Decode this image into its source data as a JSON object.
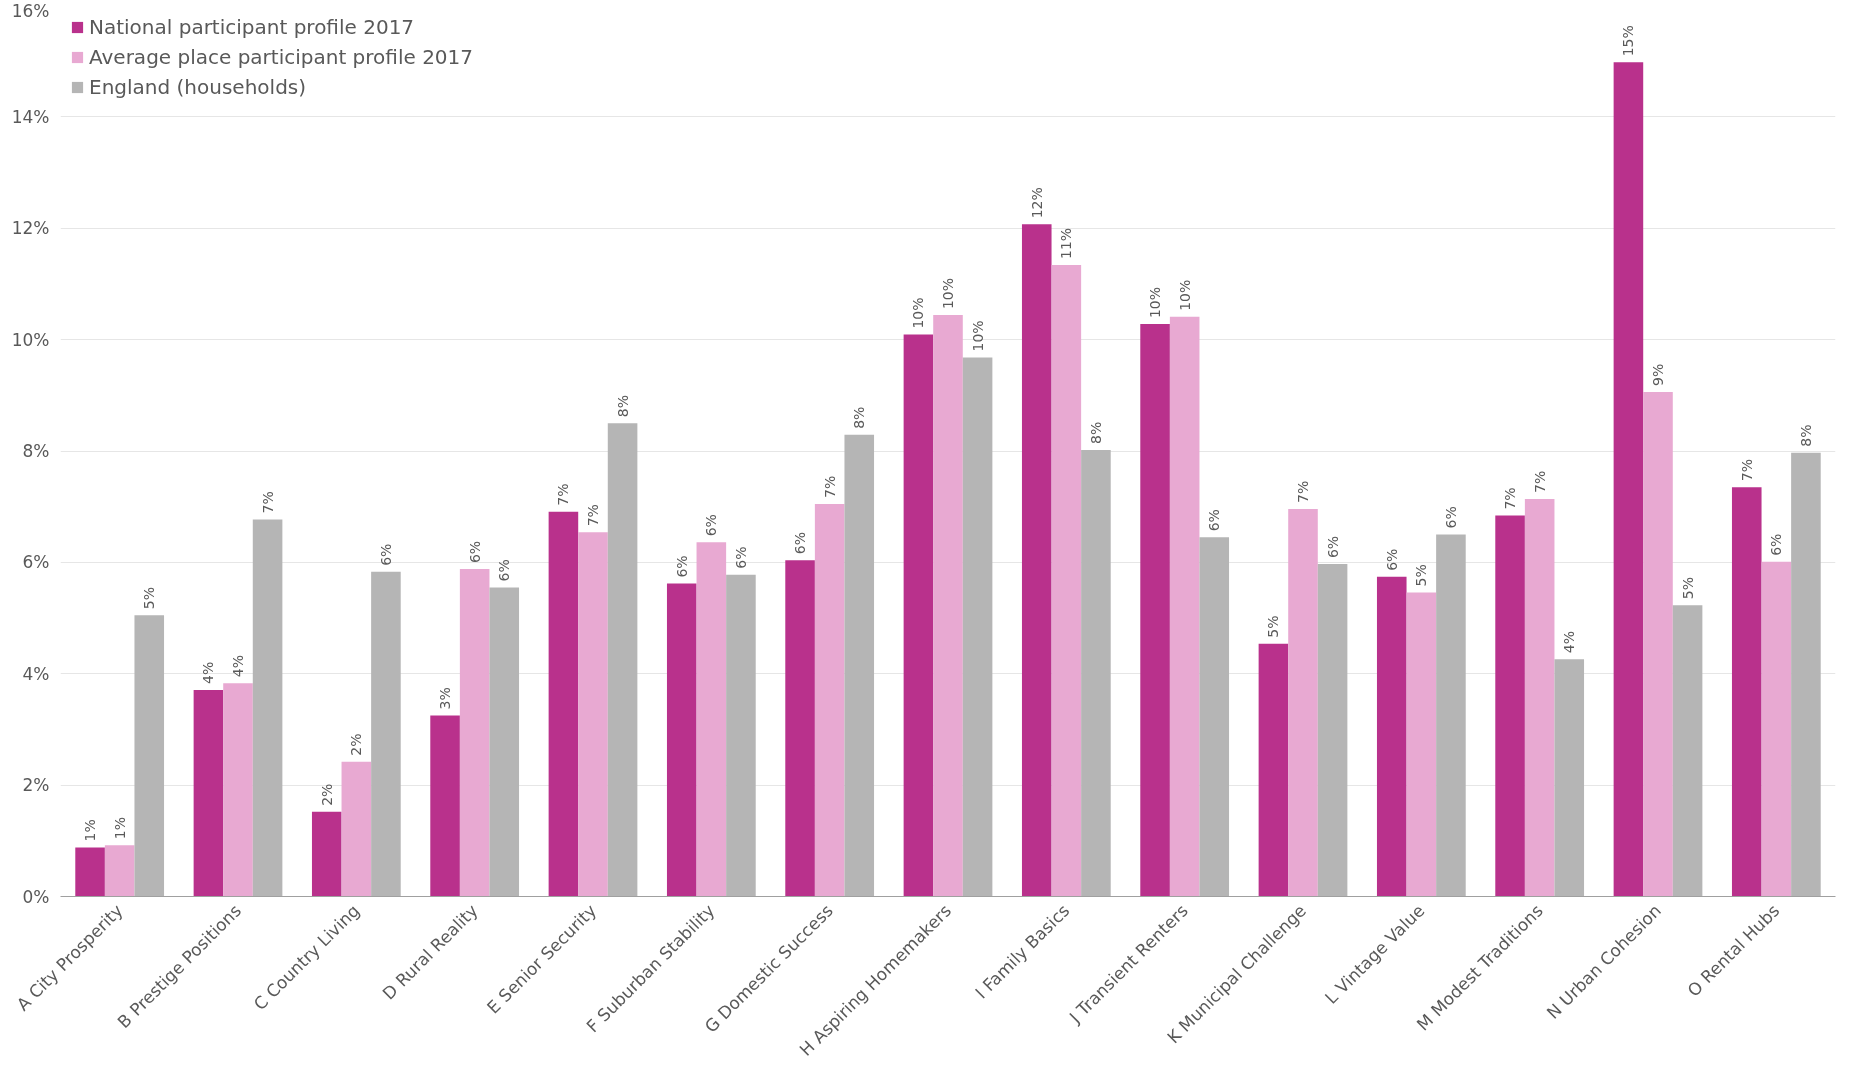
{
  "chart_data": {
    "type": "bar",
    "categories": [
      "A City Prosperity",
      "B Prestige Positions",
      "C Country Living",
      "D Rural Reality",
      "E Senior Security",
      "F Suburban Stability",
      "G Domestic Success",
      "H Aspiring Homemakers",
      "I Family Basics",
      "J Transient Renters",
      "K Municipal Challenge",
      "L Vintage Value",
      "M Modest Traditions",
      "N Urban Cohesion",
      "O Rental Hubs"
    ],
    "series": [
      {
        "name": "National participant profile 2017",
        "color": "#b9318c",
        "values": [
          0.88,
          3.71,
          1.52,
          3.25,
          6.91,
          5.62,
          6.04,
          10.09,
          12.07,
          10.28,
          4.54,
          5.74,
          6.84,
          14.98,
          7.35
        ],
        "value_labels": [
          "1%",
          "4%",
          "2%",
          "3%",
          "7%",
          "6%",
          "6%",
          "10%",
          "12%",
          "10%",
          "5%",
          "6%",
          "7%",
          "15%",
          "7%"
        ]
      },
      {
        "name": "Average place participant profile 2017",
        "color": "#e8a9d2",
        "values": [
          0.92,
          3.83,
          2.42,
          5.88,
          6.54,
          6.36,
          7.05,
          10.44,
          11.34,
          10.41,
          6.96,
          5.46,
          7.14,
          9.06,
          6.01
        ],
        "value_labels": [
          "1%",
          "4%",
          "2%",
          "6%",
          "7%",
          "6%",
          "7%",
          "10%",
          "11%",
          "10%",
          "7%",
          "5%",
          "7%",
          "9%",
          "6%"
        ]
      },
      {
        "name": "England (households)",
        "color": "#b5b5b5",
        "values": [
          5.05,
          6.77,
          5.83,
          5.55,
          8.5,
          5.78,
          8.29,
          9.68,
          8.02,
          6.45,
          5.97,
          6.5,
          4.26,
          5.23,
          7.97
        ],
        "value_labels": [
          "5%",
          "7%",
          "6%",
          "6%",
          "8%",
          "6%",
          "8%",
          "10%",
          "8%",
          "6%",
          "6%",
          "6%",
          "4%",
          "5%",
          "8%"
        ]
      }
    ],
    "ylim": [
      0,
      16
    ],
    "yticks": [
      {
        "value": 0,
        "label": "0%"
      },
      {
        "value": 2,
        "label": "2%"
      },
      {
        "value": 4,
        "label": "4%"
      },
      {
        "value": 6,
        "label": "6%"
      },
      {
        "value": 8,
        "label": "8%"
      },
      {
        "value": 10,
        "label": "10%"
      },
      {
        "value": 12,
        "label": "12%"
      },
      {
        "value": 14,
        "label": "14%"
      },
      {
        "value": 16,
        "label": "16%"
      }
    ],
    "grid": "y",
    "legend": "top left"
  }
}
